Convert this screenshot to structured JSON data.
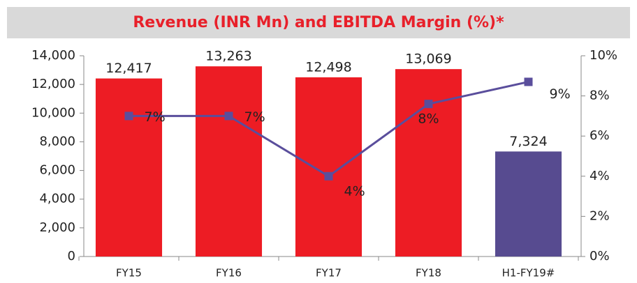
{
  "chart_data": {
    "type": "bar_line",
    "title": "Revenue (INR Mn) and EBITDA Margin (%)*",
    "categories": [
      "FY15",
      "FY16",
      "FY17",
      "FY18",
      "H1-FY19#"
    ],
    "series": [
      {
        "type": "bar",
        "colors": [
          "#ed1c24",
          "#ed1c24",
          "#ed1c24",
          "#ed1c24",
          "#574b90"
        ],
        "values": [
          12417,
          13263,
          12498,
          13069,
          7324
        ],
        "value_labels": [
          "12,417",
          "13,263",
          "12,498",
          "13,069",
          "7,324"
        ]
      },
      {
        "type": "line",
        "axis": "y2",
        "color": "#5a4e9c",
        "values": [
          7.0,
          7.0,
          4.0,
          7.6,
          8.7
        ],
        "value_labels": [
          "7%",
          "7%",
          "4%",
          "8%",
          "9%"
        ]
      }
    ],
    "ylim": [
      0,
      14000
    ],
    "yticks": [
      0,
      {
        "value": 2000,
        "label": "2,000"
      },
      {
        "value": 4000,
        "label": "4,000"
      },
      {
        "value": 6000,
        "label": "6,000"
      },
      {
        "value": 8000,
        "label": "8,000"
      },
      {
        "value": 10000,
        "label": "10,000"
      },
      {
        "value": 12000,
        "label": "12,000"
      },
      {
        "value": 14000,
        "label": "14,000"
      }
    ],
    "y2lim": [
      0,
      10
    ],
    "y2ticks": [
      {
        "value": 0,
        "label": "0%"
      },
      {
        "value": 2,
        "label": "2%"
      },
      {
        "value": 4,
        "label": "4%"
      },
      {
        "value": 6,
        "label": "6%"
      },
      {
        "value": 8,
        "label": "8%"
      },
      {
        "value": 10,
        "label": "10%"
      }
    ]
  }
}
